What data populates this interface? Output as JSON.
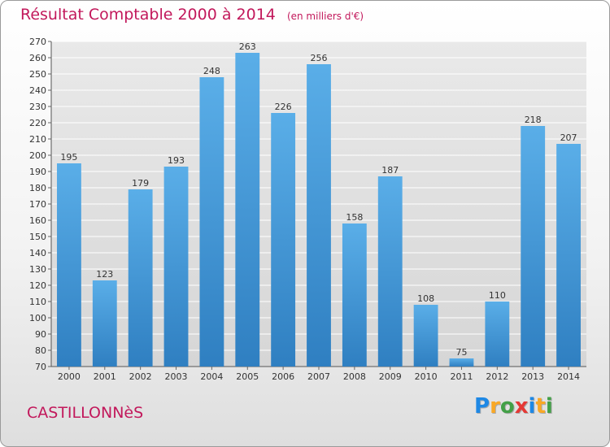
{
  "header": {
    "title": "Résultat Comptable 2000 à 2014",
    "subtitle": "(en milliers d'€)"
  },
  "footer": {
    "place": "CASTILLONNèS",
    "logo_letters": [
      "P",
      "r",
      "o",
      "x",
      "i",
      "t",
      "i"
    ],
    "logo_colors": [
      "#1e88e5",
      "#f9a825",
      "#43a047",
      "#e53935",
      "#1e88e5",
      "#f9a825",
      "#43a047"
    ]
  },
  "chart_data": {
    "type": "bar",
    "categories": [
      "2000",
      "2001",
      "2002",
      "2003",
      "2004",
      "2005",
      "2006",
      "2007",
      "2008",
      "2009",
      "2010",
      "2011",
      "2012",
      "2013",
      "2014"
    ],
    "values": [
      195,
      123,
      179,
      193,
      248,
      263,
      226,
      256,
      158,
      187,
      108,
      75,
      110,
      218,
      207
    ],
    "ylim": [
      70,
      270
    ],
    "ytick_step": 10,
    "grid": true,
    "bar_color": "#3a8fd6"
  }
}
